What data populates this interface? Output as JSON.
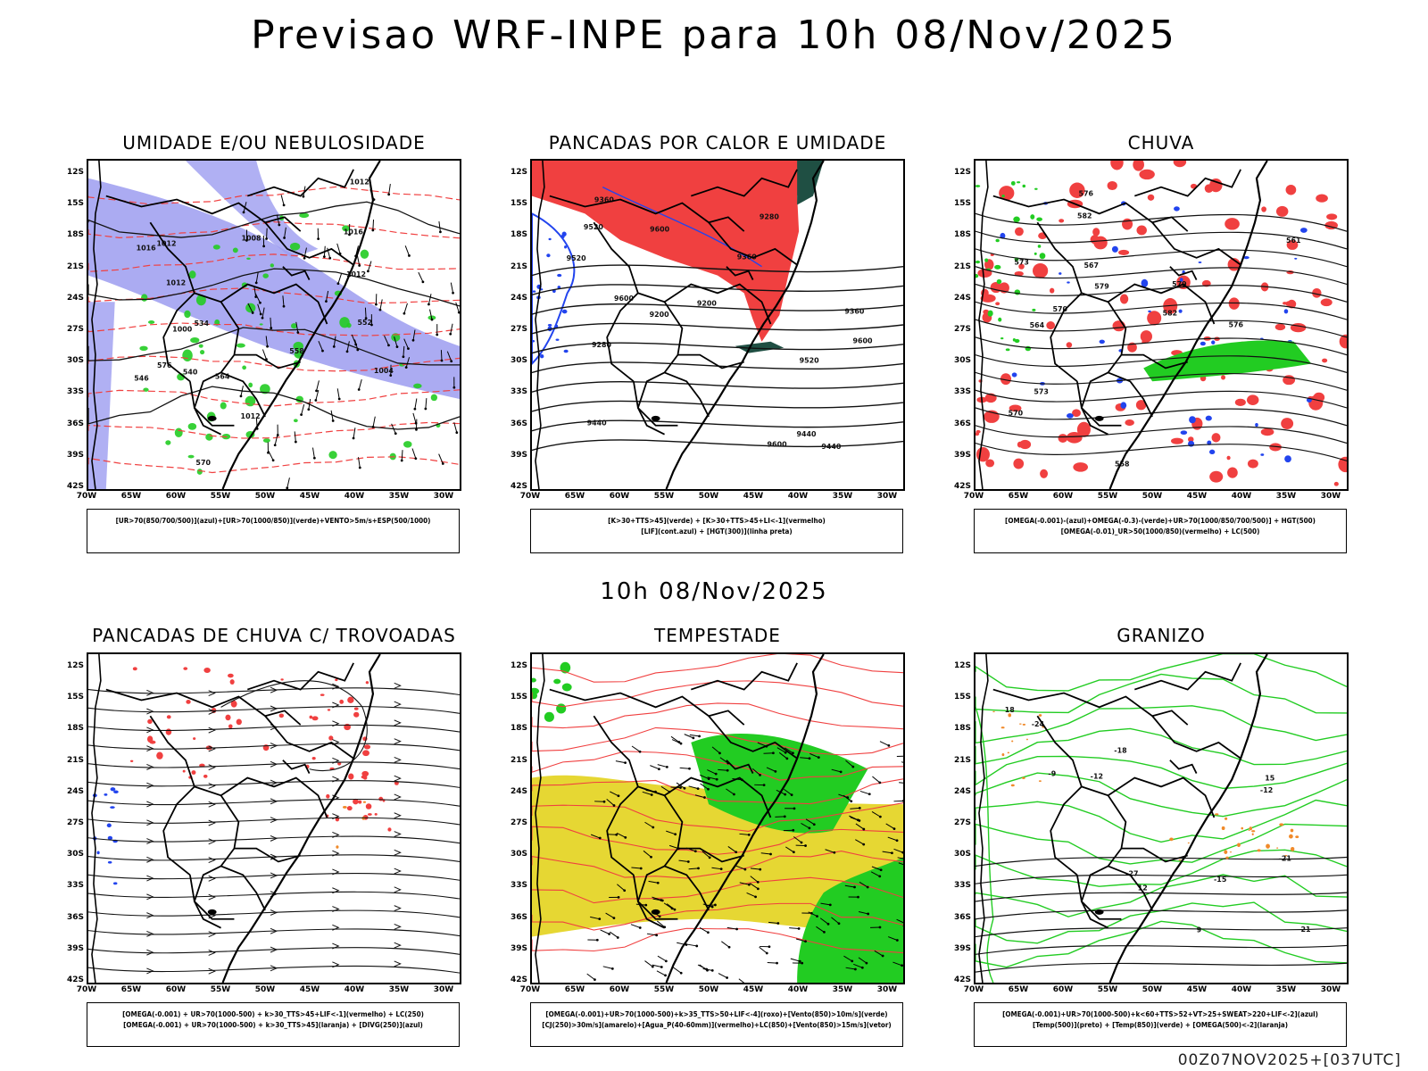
{
  "title": "Previsao WRF-INPE  para 10h 08/Nov/2025",
  "mid_label": "10h 08/Nov/2025",
  "footer": "00Z07NOV2025+[037UTC]",
  "lat_labels": [
    "12S",
    "15S",
    "18S",
    "21S",
    "24S",
    "27S",
    "30S",
    "33S",
    "36S",
    "39S",
    "42S"
  ],
  "lon_labels": [
    "70W",
    "65W",
    "60W",
    "55W",
    "50W",
    "45W",
    "40W",
    "35W",
    "30W"
  ],
  "colors": {
    "red": "#f04040",
    "green": "#22cc22",
    "blue": "#2244ee",
    "lavender": "#9c9cf0",
    "yellow": "#e6d733",
    "darkteal": "#1f4f43",
    "orange": "#f08a2a",
    "black": "#000000"
  },
  "panels": [
    {
      "title": "UMIDADE E/OU NEBULOSIDADE",
      "legend": [
        "[UR>70(850/700/500)](azul)+[UR>70(1000/850)](verde)+VENTO>5m/s+ESP(500/1000)"
      ],
      "contour_labels": [
        "1012",
        "1016",
        "1012",
        "1012",
        "1008",
        "1004",
        "1000",
        "1016",
        "1012",
        "1012",
        "576",
        "570",
        "564",
        "558",
        "552",
        "546",
        "540",
        "534"
      ]
    },
    {
      "title": "PANCADAS POR CALOR E UMIDADE",
      "legend": [
        "[K>30+TTS>45](verde) + [K>30+TTS>45+LI<-1](vermelho)",
        "[LIF](cont.azul) + [HGT(300)](linha preta)"
      ],
      "contour_labels": [
        "9600",
        "9520",
        "9600",
        "9440",
        "9520",
        "9360",
        "9440",
        "9360",
        "9280",
        "9200",
        "9600",
        "9520",
        "9440",
        "9360",
        "9280",
        "9200",
        "9600"
      ]
    },
    {
      "title": "CHUVA",
      "legend": [
        "[OMEGA(-0.001)-(azul)+OMEGA(-0.3)-(verde)+UR>70(1000/850/700/500)] + HGT(500)",
        "[OMEGA(-0.01)_UR>50(1000/850)(vermelho) + LC(500)"
      ],
      "contour_labels": [
        "582",
        "579",
        "576",
        "573",
        "570",
        "567",
        "564",
        "561",
        "558",
        "576",
        "573",
        "570",
        "579",
        "582"
      ]
    },
    {
      "title": "PANCADAS DE CHUVA C/ TROVOADAS",
      "legend": [
        "[OMEGA(-0.001) + UR>70(1000-500) + k>30_TTS>45+LIF<-1](vermelho) + LC(250)",
        "[OMEGA(-0.001) + UR>70(1000-500) + k>30_TTS>45](laranja) + [DIVG(250)](azul)"
      ],
      "contour_labels": []
    },
    {
      "title": "TEMPESTADE",
      "legend": [
        "[OMEGA(-0.001)+UR>70(1000-500)+k>35_TTS>50+LIF<-4](roxo)+[Vento(850)>10m/s](verde)",
        "[CJ(250)>30m/s](amarelo)+[Agua_P(40-60mm)](vermelho)+LC(850)+[Vento(850)>15m/s](vetor)"
      ],
      "contour_labels": []
    },
    {
      "title": "GRANIZO",
      "legend": [
        "[OMEGA(-0.001)+UR>70(1000-500)+k<60+TTS>52+VT>25+SWEAT>220+LIF<-2](azul)",
        "[Temp(500)](preto) + [Temp(850)](verde) + [OMEGA(500)<-2](laranja)"
      ],
      "contour_labels": [
        "-12",
        "-15",
        "-18",
        "-21",
        "-24",
        "-27",
        "-9",
        "-12",
        "15",
        "18",
        "21",
        "12",
        "9"
      ]
    }
  ]
}
